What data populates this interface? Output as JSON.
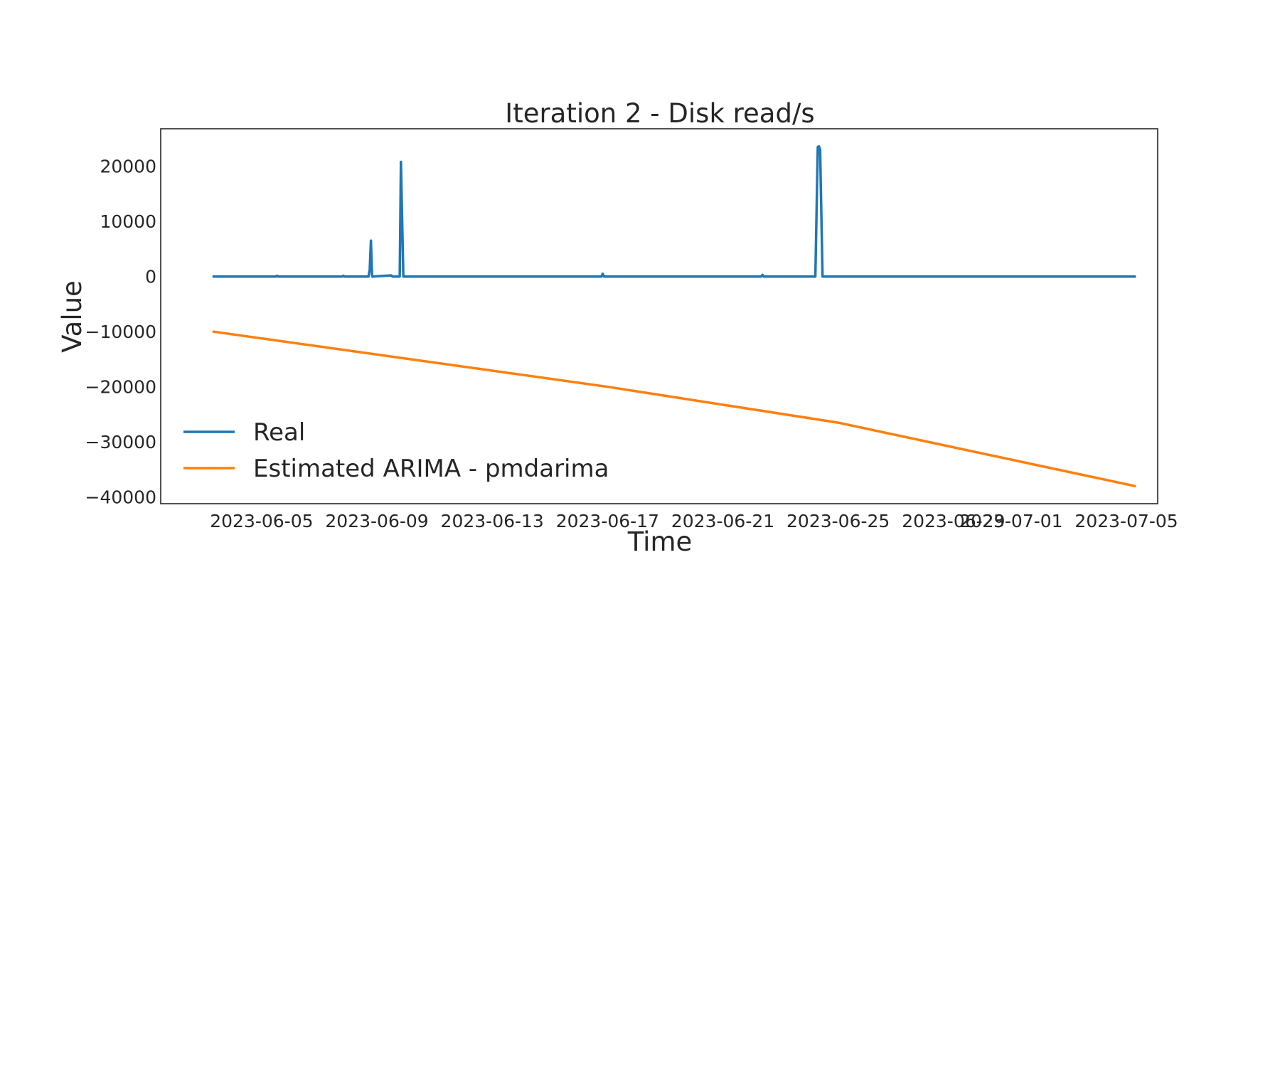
{
  "chart_data": {
    "type": "line",
    "title": "Iteration 2 - Disk read/s",
    "xlabel": "Time",
    "ylabel": "Value",
    "x_range": [
      "2023-06-01T12:00",
      "2023-07-06T02:00"
    ],
    "ylim": [
      -41200,
      26800
    ],
    "grid": false,
    "legend_position": "lower-left",
    "x_ticks": [
      {
        "date": "2023-06-05",
        "label": "2023-06-05"
      },
      {
        "date": "2023-06-09",
        "label": "2023-06-09"
      },
      {
        "date": "2023-06-13",
        "label": "2023-06-13"
      },
      {
        "date": "2023-06-17",
        "label": "2023-06-17"
      },
      {
        "date": "2023-06-21",
        "label": "2023-06-21"
      },
      {
        "date": "2023-06-25",
        "label": "2023-06-25"
      },
      {
        "date": "2023-06-29",
        "label": "2023-06-29"
      },
      {
        "date": "2023-07-01",
        "label": "2023-07-01"
      },
      {
        "date": "2023-07-05",
        "label": "2023-07-05"
      }
    ],
    "y_ticks": [
      {
        "value": 20000,
        "label": "20000"
      },
      {
        "value": 10000,
        "label": "10000"
      },
      {
        "value": 0,
        "label": "0"
      },
      {
        "value": -10000,
        "label": "−10000"
      },
      {
        "value": -20000,
        "label": "−20000"
      },
      {
        "value": -30000,
        "label": "−30000"
      },
      {
        "value": -40000,
        "label": "−40000"
      }
    ],
    "series": [
      {
        "name": "Real",
        "color": "#1f77b4",
        "points": [
          {
            "x": "2023-06-03T08:00",
            "y": 0
          },
          {
            "x": "2023-06-05T12:00",
            "y": 0
          },
          {
            "x": "2023-06-05T13:00",
            "y": 150
          },
          {
            "x": "2023-06-05T14:00",
            "y": 0
          },
          {
            "x": "2023-06-07T19:00",
            "y": 0
          },
          {
            "x": "2023-06-07T20:00",
            "y": 150
          },
          {
            "x": "2023-06-07T21:00",
            "y": 0
          },
          {
            "x": "2023-06-08T17:00",
            "y": 0
          },
          {
            "x": "2023-06-08T18:00",
            "y": 1200
          },
          {
            "x": "2023-06-08T19:00",
            "y": 6500
          },
          {
            "x": "2023-06-08T20:00",
            "y": 0
          },
          {
            "x": "2023-06-09T12:00",
            "y": 200
          },
          {
            "x": "2023-06-09T13:00",
            "y": 0
          },
          {
            "x": "2023-06-09T19:00",
            "y": 0
          },
          {
            "x": "2023-06-09T20:00",
            "y": 20800
          },
          {
            "x": "2023-06-09T22:00",
            "y": 0
          },
          {
            "x": "2023-06-16T19:00",
            "y": 0
          },
          {
            "x": "2023-06-16T20:00",
            "y": 500
          },
          {
            "x": "2023-06-16T21:00",
            "y": 0
          },
          {
            "x": "2023-06-22T08:00",
            "y": 0
          },
          {
            "x": "2023-06-22T09:00",
            "y": 300
          },
          {
            "x": "2023-06-22T10:00",
            "y": 0
          },
          {
            "x": "2023-06-24T05:00",
            "y": 0
          },
          {
            "x": "2023-06-24T07:00",
            "y": 23500
          },
          {
            "x": "2023-06-24T08:00",
            "y": 23600
          },
          {
            "x": "2023-06-24T09:00",
            "y": 23000
          },
          {
            "x": "2023-06-24T11:00",
            "y": 0
          },
          {
            "x": "2023-07-05T07:00",
            "y": 0
          }
        ]
      },
      {
        "name": "Estimated ARIMA - pmdarima",
        "color": "#ff7f0e",
        "points": [
          {
            "x": "2023-06-03T08:00",
            "y": -10000
          },
          {
            "x": "2023-06-17T00:00",
            "y": -20000
          },
          {
            "x": "2023-06-25T00:00",
            "y": -26500
          },
          {
            "x": "2023-07-05T07:00",
            "y": -38000
          }
        ]
      }
    ]
  }
}
